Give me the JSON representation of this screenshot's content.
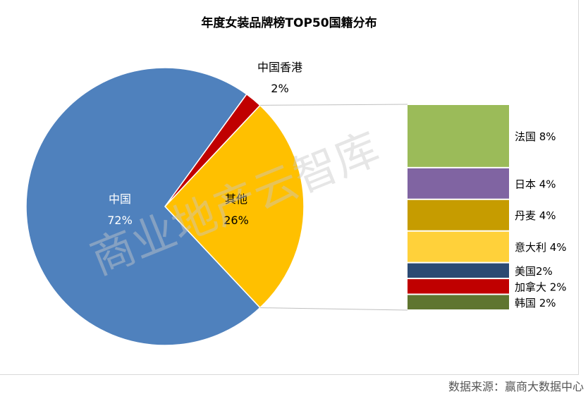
{
  "chart_data": {
    "type": "pie-of-bar",
    "title": "年度女装品牌榜TOP50国籍分布",
    "pie": [
      {
        "name": "中国",
        "value": 72,
        "label": "72%",
        "color": "#4f81bd"
      },
      {
        "name": "其他",
        "value": 26,
        "label": "26%",
        "color": "#ffc000"
      },
      {
        "name": "中国香港",
        "value": 2,
        "label": "2%",
        "color": "#c00000"
      }
    ],
    "bar": [
      {
        "name": "法国",
        "value": 8,
        "label": "法国 8%",
        "color": "#9bbb59"
      },
      {
        "name": "日本",
        "value": 4,
        "label": "日本 4%",
        "color": "#8064a2"
      },
      {
        "name": "丹麦",
        "value": 4,
        "label": "丹麦 4%",
        "color": "#c69c00"
      },
      {
        "name": "意大利",
        "value": 4,
        "label": "意大利 4%",
        "color": "#ffd13a"
      },
      {
        "name": "美国",
        "value": 2,
        "label": "美国2%",
        "color": "#2c4a73"
      },
      {
        "name": "加拿大",
        "value": 2,
        "label": "加拿大 2%",
        "color": "#c00000"
      },
      {
        "name": "韩国",
        "value": 2,
        "label": "韩国 2%",
        "color": "#5f7530"
      }
    ]
  },
  "watermark": "商业地产云智库",
  "source": "数据来源：赢商大数据中心"
}
